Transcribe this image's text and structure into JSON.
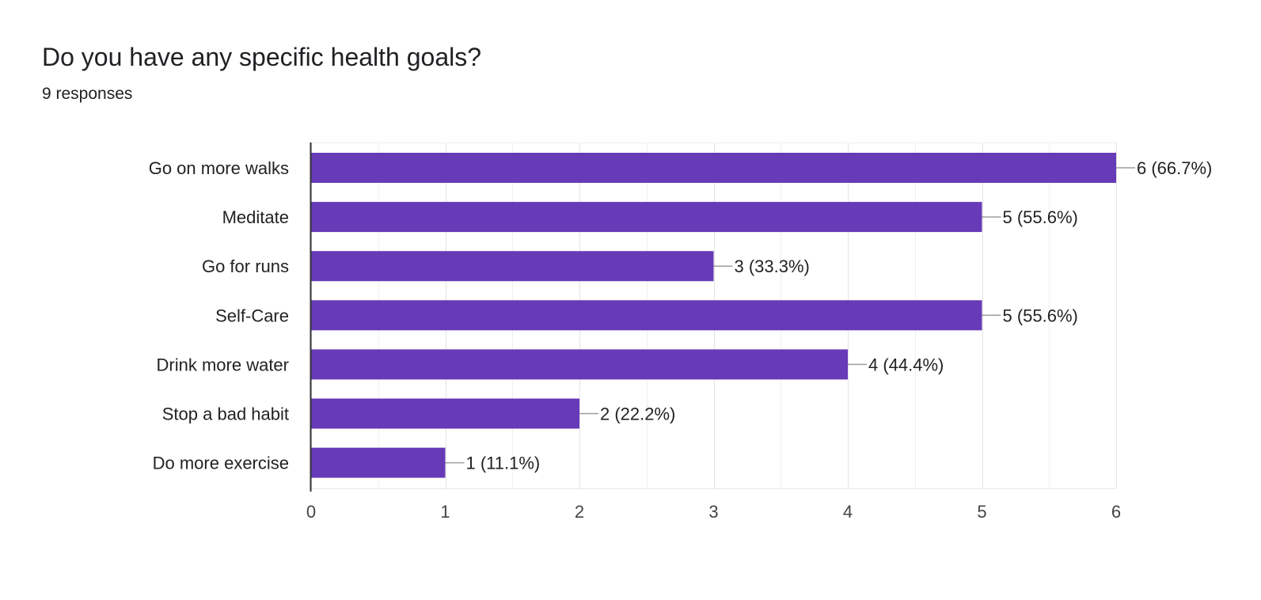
{
  "question": {
    "title": "Do you have any specific health goals?",
    "responses": "9 responses"
  },
  "chart_data": {
    "type": "bar",
    "orientation": "horizontal",
    "title": "",
    "xlabel": "",
    "ylabel": "",
    "xlim": [
      0,
      6
    ],
    "ticks": [
      "0",
      "1",
      "2",
      "3",
      "4",
      "5",
      "6"
    ],
    "grid": true,
    "bar_color": "#673ab7",
    "categories": [
      "Go on more walks",
      "Meditate",
      "Go for runs",
      "Self-Care",
      "Drink more water",
      "Stop a bad habit",
      "Do more exercise"
    ],
    "values": [
      6,
      5,
      3,
      5,
      4,
      2,
      1
    ],
    "data_labels": [
      "6 (66.7%)",
      "5 (55.6%)",
      "3 (33.3%)",
      "5 (55.6%)",
      "4 (44.4%)",
      "2 (22.2%)",
      "1 (11.1%)"
    ]
  }
}
